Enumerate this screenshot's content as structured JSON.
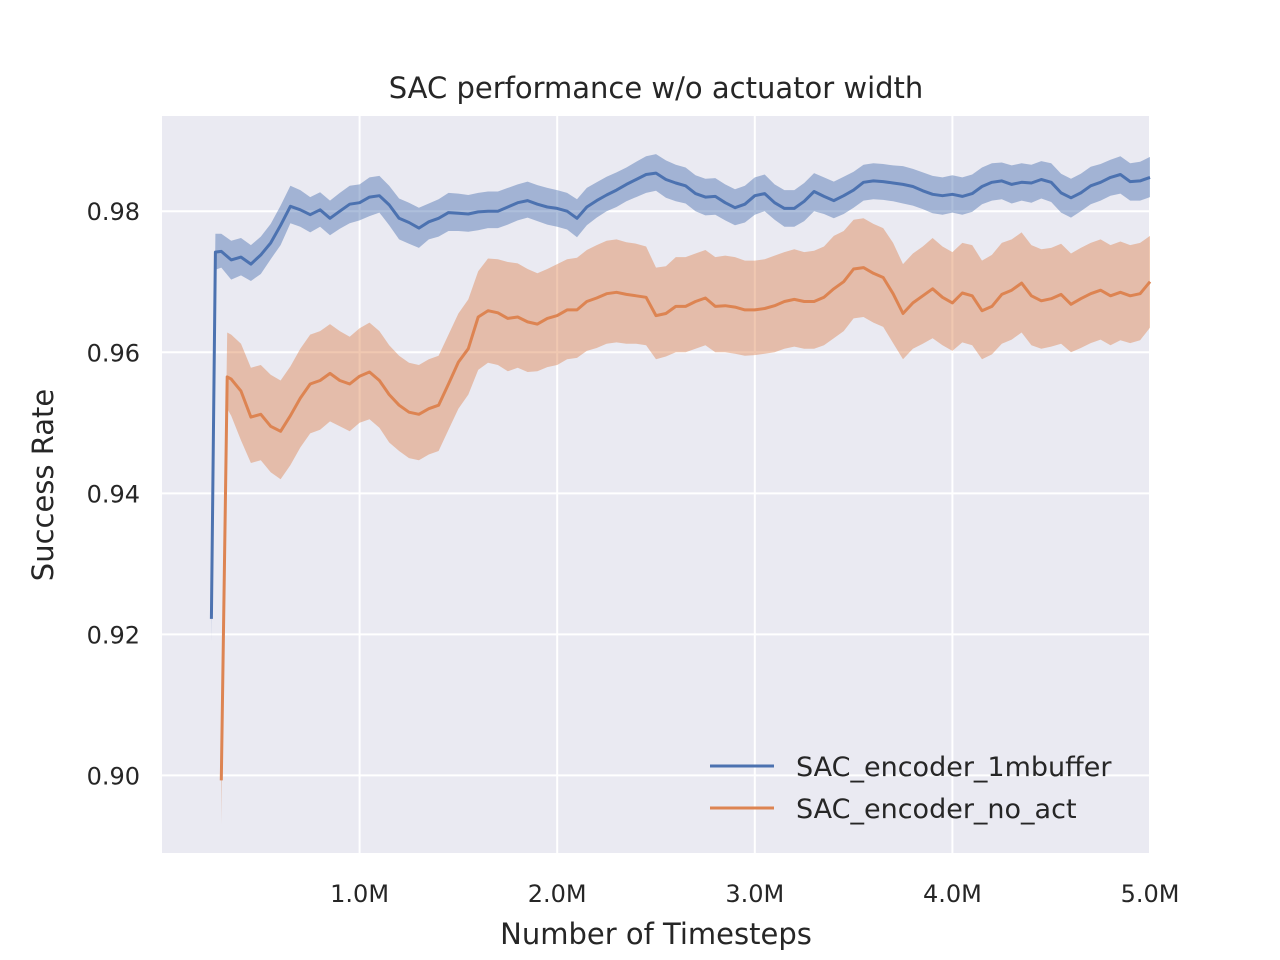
{
  "chart_data": {
    "type": "line",
    "title": "SAC performance w/o actuator width",
    "xlabel": "Number of Timesteps",
    "ylabel": "Success Rate",
    "xlim": [
      0,
      5000000
    ],
    "ylim": [
      0.889,
      0.9935
    ],
    "xticks": [
      1000000,
      2000000,
      3000000,
      4000000,
      5000000
    ],
    "xtick_labels": [
      "1.0M",
      "2.0M",
      "3.0M",
      "4.0M",
      "5.0M"
    ],
    "yticks": [
      0.9,
      0.92,
      0.94,
      0.96,
      0.98
    ],
    "ytick_labels": [
      "0.90",
      "0.92",
      "0.94",
      "0.96",
      "0.98"
    ],
    "legend_position": "lower-right",
    "grid": true,
    "series": [
      {
        "name": "SAC_encoder_1mbuffer",
        "color": "#4c72b0",
        "x": [
          0.25,
          0.27,
          0.3,
          0.35,
          0.4,
          0.45,
          0.5,
          0.55,
          0.6,
          0.65,
          0.7,
          0.75,
          0.8,
          0.85,
          0.9,
          0.95,
          1.0,
          1.05,
          1.1,
          1.15,
          1.2,
          1.25,
          1.3,
          1.35,
          1.4,
          1.45,
          1.5,
          1.55,
          1.6,
          1.65,
          1.7,
          1.75,
          1.8,
          1.85,
          1.9,
          1.95,
          2.0,
          2.05,
          2.1,
          2.15,
          2.2,
          2.25,
          2.3,
          2.35,
          2.4,
          2.45,
          2.5,
          2.55,
          2.6,
          2.65,
          2.7,
          2.75,
          2.8,
          2.85,
          2.9,
          2.95,
          3.0,
          3.05,
          3.1,
          3.15,
          3.2,
          3.25,
          3.3,
          3.35,
          3.4,
          3.45,
          3.5,
          3.55,
          3.6,
          3.65,
          3.7,
          3.75,
          3.8,
          3.85,
          3.9,
          3.95,
          4.0,
          4.05,
          4.1,
          4.15,
          4.2,
          4.25,
          4.3,
          4.35,
          4.4,
          4.45,
          4.5,
          4.55,
          4.6,
          4.65,
          4.7,
          4.75,
          4.8,
          4.85,
          4.9,
          4.95,
          5.0
        ],
        "mean": [
          0.9222,
          0.9742,
          0.9743,
          0.9731,
          0.9735,
          0.9725,
          0.9738,
          0.9755,
          0.978,
          0.9807,
          0.9802,
          0.9795,
          0.9802,
          0.979,
          0.98,
          0.981,
          0.9812,
          0.982,
          0.9822,
          0.9809,
          0.979,
          0.9784,
          0.9776,
          0.9785,
          0.979,
          0.9798,
          0.9797,
          0.9796,
          0.9799,
          0.98,
          0.98,
          0.9806,
          0.9812,
          0.9815,
          0.981,
          0.9806,
          0.9804,
          0.98,
          0.979,
          0.9806,
          0.9815,
          0.9823,
          0.983,
          0.9838,
          0.9845,
          0.9852,
          0.9854,
          0.9845,
          0.984,
          0.9836,
          0.9825,
          0.982,
          0.9821,
          0.9812,
          0.9805,
          0.981,
          0.9822,
          0.9825,
          0.9812,
          0.9804,
          0.9804,
          0.9814,
          0.9828,
          0.9821,
          0.9815,
          0.9822,
          0.983,
          0.9841,
          0.9843,
          0.9842,
          0.984,
          0.9838,
          0.9835,
          0.9829,
          0.9824,
          0.9822,
          0.9824,
          0.9821,
          0.9825,
          0.9835,
          0.9841,
          0.9843,
          0.9838,
          0.9841,
          0.984,
          0.9845,
          0.9841,
          0.9826,
          0.9819,
          0.9826,
          0.9836,
          0.9841,
          0.9848,
          0.9852,
          0.9842,
          0.9843,
          0.9848
        ],
        "lower": [
          0.919,
          0.9717,
          0.972,
          0.9703,
          0.9709,
          0.9701,
          0.9711,
          0.9732,
          0.9752,
          0.9783,
          0.9778,
          0.977,
          0.9778,
          0.9766,
          0.9775,
          0.9783,
          0.9787,
          0.9793,
          0.9798,
          0.978,
          0.976,
          0.9754,
          0.9748,
          0.976,
          0.9764,
          0.9772,
          0.9772,
          0.9771,
          0.9773,
          0.9776,
          0.9776,
          0.9781,
          0.9787,
          0.9791,
          0.9786,
          0.9781,
          0.9778,
          0.9774,
          0.9763,
          0.978,
          0.9791,
          0.98,
          0.9806,
          0.9814,
          0.982,
          0.9826,
          0.9829,
          0.9819,
          0.9814,
          0.9811,
          0.98,
          0.9794,
          0.9795,
          0.9787,
          0.978,
          0.9784,
          0.9795,
          0.98,
          0.9788,
          0.9778,
          0.9778,
          0.9786,
          0.98,
          0.9796,
          0.979,
          0.9796,
          0.9805,
          0.9815,
          0.9817,
          0.9816,
          0.9814,
          0.9811,
          0.9808,
          0.9803,
          0.9797,
          0.9795,
          0.9798,
          0.9795,
          0.9799,
          0.981,
          0.9815,
          0.9817,
          0.9811,
          0.9815,
          0.9812,
          0.9818,
          0.9813,
          0.9798,
          0.9791,
          0.98,
          0.981,
          0.9815,
          0.9822,
          0.9825,
          0.9815,
          0.9815,
          0.982
        ],
        "upper": [
          0.9255,
          0.9768,
          0.9768,
          0.9758,
          0.9762,
          0.9752,
          0.9764,
          0.9782,
          0.9808,
          0.9836,
          0.983,
          0.982,
          0.9827,
          0.9815,
          0.9826,
          0.9836,
          0.9838,
          0.9848,
          0.985,
          0.9836,
          0.9818,
          0.9812,
          0.9805,
          0.9811,
          0.9817,
          0.9826,
          0.9825,
          0.9823,
          0.9826,
          0.9828,
          0.9828,
          0.9833,
          0.9838,
          0.9842,
          0.9837,
          0.9833,
          0.983,
          0.9826,
          0.9817,
          0.9833,
          0.9841,
          0.9849,
          0.9855,
          0.9862,
          0.987,
          0.9878,
          0.9881,
          0.9872,
          0.9866,
          0.9862,
          0.9851,
          0.9846,
          0.9847,
          0.9838,
          0.9831,
          0.9836,
          0.9848,
          0.9852,
          0.9838,
          0.983,
          0.983,
          0.984,
          0.9854,
          0.9848,
          0.9842,
          0.9849,
          0.9856,
          0.9866,
          0.9868,
          0.9867,
          0.9865,
          0.9864,
          0.986,
          0.9855,
          0.985,
          0.9848,
          0.9851,
          0.9848,
          0.9852,
          0.9862,
          0.9868,
          0.9869,
          0.9865,
          0.9868,
          0.9866,
          0.9871,
          0.9868,
          0.9853,
          0.9846,
          0.9853,
          0.9863,
          0.9867,
          0.9873,
          0.9878,
          0.9868,
          0.987,
          0.9877
        ]
      },
      {
        "name": "SAC_encoder_no_act",
        "color": "#dd8452",
        "x": [
          0.3,
          0.33,
          0.35,
          0.4,
          0.45,
          0.5,
          0.55,
          0.6,
          0.65,
          0.7,
          0.75,
          0.8,
          0.85,
          0.9,
          0.95,
          1.0,
          1.05,
          1.1,
          1.15,
          1.2,
          1.25,
          1.3,
          1.35,
          1.4,
          1.45,
          1.5,
          1.55,
          1.6,
          1.65,
          1.7,
          1.75,
          1.8,
          1.85,
          1.9,
          1.95,
          2.0,
          2.05,
          2.1,
          2.15,
          2.2,
          2.25,
          2.3,
          2.35,
          2.4,
          2.45,
          2.5,
          2.55,
          2.6,
          2.65,
          2.7,
          2.75,
          2.8,
          2.85,
          2.9,
          2.95,
          3.0,
          3.05,
          3.1,
          3.15,
          3.2,
          3.25,
          3.3,
          3.35,
          3.4,
          3.45,
          3.5,
          3.55,
          3.6,
          3.65,
          3.7,
          3.75,
          3.8,
          3.85,
          3.9,
          3.95,
          4.0,
          4.05,
          4.1,
          4.15,
          4.2,
          4.25,
          4.3,
          4.35,
          4.4,
          4.45,
          4.5,
          4.55,
          4.6,
          4.65,
          4.7,
          4.75,
          4.8,
          4.85,
          4.9,
          4.95,
          5.0
        ],
        "mean": [
          0.8993,
          0.9565,
          0.9562,
          0.9545,
          0.9508,
          0.9512,
          0.9495,
          0.9488,
          0.951,
          0.9535,
          0.9555,
          0.956,
          0.957,
          0.956,
          0.9555,
          0.9566,
          0.9572,
          0.956,
          0.954,
          0.9525,
          0.9515,
          0.9512,
          0.952,
          0.9525,
          0.9555,
          0.9586,
          0.9605,
          0.965,
          0.9659,
          0.9656,
          0.9648,
          0.965,
          0.9643,
          0.964,
          0.9648,
          0.9652,
          0.966,
          0.966,
          0.9672,
          0.9677,
          0.9683,
          0.9685,
          0.9682,
          0.968,
          0.9678,
          0.9652,
          0.9655,
          0.9665,
          0.9665,
          0.9672,
          0.9677,
          0.9665,
          0.9666,
          0.9664,
          0.966,
          0.966,
          0.9662,
          0.9666,
          0.9672,
          0.9675,
          0.9672,
          0.9672,
          0.9678,
          0.969,
          0.97,
          0.9718,
          0.972,
          0.9712,
          0.9706,
          0.9683,
          0.9655,
          0.967,
          0.968,
          0.969,
          0.9678,
          0.967,
          0.9684,
          0.968,
          0.9659,
          0.9665,
          0.9682,
          0.9688,
          0.9698,
          0.968,
          0.9673,
          0.9676,
          0.9682,
          0.9668,
          0.9676,
          0.9683,
          0.9688,
          0.968,
          0.9685,
          0.968,
          0.9683,
          0.97
        ],
        "lower": [
          0.893,
          0.952,
          0.951,
          0.9475,
          0.9443,
          0.9447,
          0.943,
          0.942,
          0.944,
          0.9465,
          0.9485,
          0.949,
          0.9502,
          0.9495,
          0.9488,
          0.95,
          0.9505,
          0.9493,
          0.9472,
          0.946,
          0.945,
          0.9447,
          0.9455,
          0.946,
          0.949,
          0.952,
          0.954,
          0.9575,
          0.9585,
          0.9582,
          0.9573,
          0.9578,
          0.9572,
          0.9573,
          0.9579,
          0.9582,
          0.959,
          0.9592,
          0.9602,
          0.9606,
          0.9612,
          0.9614,
          0.9612,
          0.9612,
          0.961,
          0.959,
          0.9594,
          0.96,
          0.96,
          0.9605,
          0.961,
          0.96,
          0.96,
          0.9598,
          0.9595,
          0.9596,
          0.9598,
          0.96,
          0.9605,
          0.9608,
          0.9605,
          0.9605,
          0.961,
          0.962,
          0.963,
          0.9648,
          0.965,
          0.9642,
          0.9636,
          0.9613,
          0.959,
          0.9605,
          0.9612,
          0.962,
          0.961,
          0.9602,
          0.9614,
          0.961,
          0.959,
          0.9597,
          0.9612,
          0.9618,
          0.9628,
          0.961,
          0.9605,
          0.9608,
          0.9612,
          0.96,
          0.9606,
          0.9613,
          0.9618,
          0.961,
          0.9617,
          0.9613,
          0.9617,
          0.9635
        ],
        "upper": [
          0.9055,
          0.9628,
          0.9625,
          0.9612,
          0.9578,
          0.9582,
          0.9568,
          0.956,
          0.958,
          0.9605,
          0.9625,
          0.963,
          0.964,
          0.963,
          0.9622,
          0.9634,
          0.9642,
          0.963,
          0.961,
          0.9595,
          0.9585,
          0.9582,
          0.959,
          0.9595,
          0.9625,
          0.9655,
          0.9675,
          0.9715,
          0.9733,
          0.9732,
          0.9728,
          0.9726,
          0.9718,
          0.9712,
          0.9718,
          0.9725,
          0.9732,
          0.9734,
          0.9745,
          0.9752,
          0.9758,
          0.976,
          0.9756,
          0.9754,
          0.975,
          0.972,
          0.9722,
          0.9735,
          0.9735,
          0.974,
          0.9745,
          0.9735,
          0.9737,
          0.9735,
          0.973,
          0.973,
          0.9732,
          0.9737,
          0.9742,
          0.9746,
          0.9742,
          0.9744,
          0.975,
          0.9765,
          0.9772,
          0.9788,
          0.979,
          0.9782,
          0.9776,
          0.9755,
          0.9725,
          0.974,
          0.975,
          0.9762,
          0.975,
          0.9742,
          0.9755,
          0.9752,
          0.973,
          0.9738,
          0.9755,
          0.976,
          0.977,
          0.9752,
          0.9746,
          0.9748,
          0.9754,
          0.974,
          0.9748,
          0.9755,
          0.976,
          0.9752,
          0.9757,
          0.9752,
          0.9755,
          0.9765
        ]
      }
    ]
  }
}
